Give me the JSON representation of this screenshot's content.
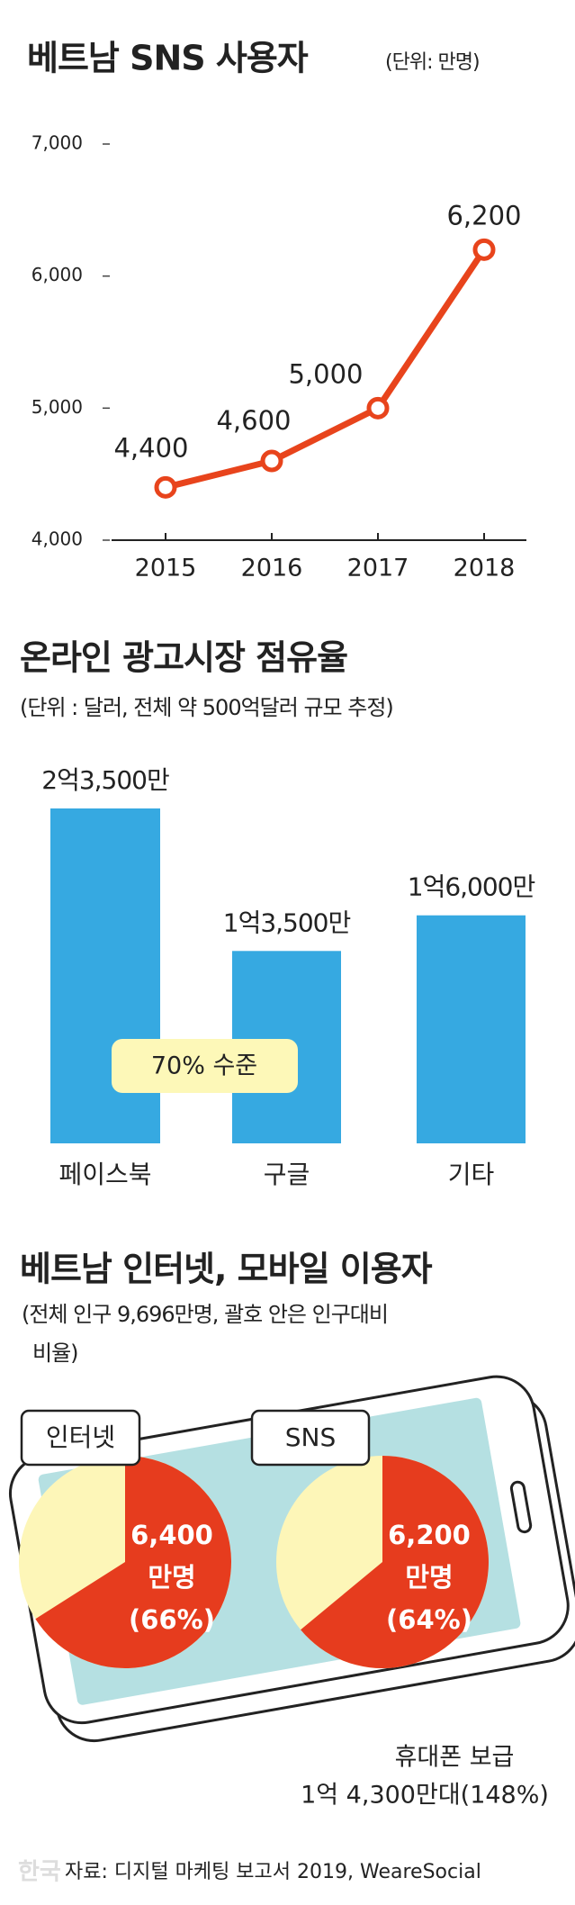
{
  "chart_data": [
    {
      "type": "line",
      "title": "베트남 SNS 사용자",
      "subtitle": "(단위: 만명)",
      "categories": [
        "2015",
        "2016",
        "2017",
        "2018"
      ],
      "values": [
        4400,
        4600,
        5000,
        6200
      ],
      "value_labels": [
        "4,400",
        "4,600",
        "5,000",
        "6,200"
      ],
      "color": "#e8441c",
      "ylim": [
        4000,
        7000
      ],
      "yticks": [
        {
          "value": 4000,
          "label": "4,000"
        },
        {
          "value": 5000,
          "label": "5,000"
        },
        {
          "value": 6000,
          "label": "6,000"
        },
        {
          "value": 7000,
          "label": "7,000"
        }
      ]
    },
    {
      "type": "bar",
      "title": "온라인 광고시장 점유율",
      "subtitle": "(단위 : 달러, 전체 약 500억달러 규모 추정)",
      "categories": [
        "페이스북",
        "구글",
        "기타"
      ],
      "values": [
        235000000,
        135000000,
        160000000
      ],
      "value_labels": [
        "2억3,500만",
        "1억3,500만",
        "1억6,000만"
      ],
      "color": "#36a9e1",
      "annotation": "70% 수준"
    },
    {
      "type": "pie",
      "title": "베트남 인터넷, 모바일 이용자",
      "subtitle": [
        "(전체 인구 9,696만명, 괄호 안은 인구대비",
        "비율)"
      ],
      "categories": [
        "인터넷",
        "SNS"
      ],
      "values": [
        66,
        64
      ],
      "value_labels": [
        "(66%)",
        "(64%)"
      ],
      "count_labels": [
        "6,400",
        "6,200"
      ],
      "unit": "만명",
      "colors": [
        "#e63c1e",
        "#fdf6b8"
      ],
      "annotation": [
        "휴대폰 보급",
        "1억 4,300만대(148%)"
      ]
    }
  ],
  "source": "자료: 디지털 마케팅 보고서 2019, WeareSocial",
  "watermark": "한국"
}
